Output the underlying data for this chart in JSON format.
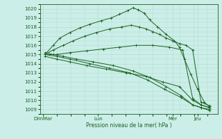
{
  "xlabel": "Pression niveau de la mer( hPa )",
  "ylim": [
    1008.5,
    1020.5
  ],
  "yticks": [
    1009,
    1010,
    1011,
    1012,
    1013,
    1014,
    1015,
    1016,
    1017,
    1018,
    1019,
    1020
  ],
  "xtick_labels": [
    "DimMar",
    "Lun",
    "Mer",
    "Jeu"
  ],
  "xtick_positions": [
    0.0,
    0.33,
    0.78,
    0.93
  ],
  "bg_color": "#cceee8",
  "grid_color": "#aaddcc",
  "line_color": "#1a6020",
  "line_width": 0.7,
  "lines": [
    {
      "x": [
        0.01,
        0.06,
        0.1,
        0.16,
        0.22,
        0.28,
        0.35,
        0.41,
        0.46,
        0.51,
        0.54,
        0.57,
        0.61,
        0.64,
        0.69,
        0.74,
        0.79,
        0.82,
        0.85,
        0.89,
        0.93,
        0.97,
        1.0
      ],
      "y": [
        1015.0,
        1016.0,
        1016.8,
        1017.4,
        1017.9,
        1018.3,
        1018.7,
        1019.0,
        1019.4,
        1019.8,
        1020.1,
        1019.9,
        1019.5,
        1018.8,
        1018.0,
        1017.2,
        1016.5,
        1015.8,
        1014.5,
        1012.8,
        1011.2,
        1009.8,
        1009.3
      ]
    },
    {
      "x": [
        0.01,
        0.06,
        0.12,
        0.18,
        0.25,
        0.32,
        0.4,
        0.47,
        0.53,
        0.58,
        0.62,
        0.66,
        0.7,
        0.74,
        0.78,
        0.82,
        0.86,
        0.9,
        0.95,
        1.0
      ],
      "y": [
        1015.0,
        1015.5,
        1016.0,
        1016.5,
        1017.0,
        1017.4,
        1017.8,
        1018.0,
        1018.2,
        1018.0,
        1017.8,
        1017.5,
        1017.2,
        1016.8,
        1016.5,
        1016.2,
        1016.0,
        1015.5,
        1009.8,
        1009.4
      ]
    },
    {
      "x": [
        0.01,
        0.08,
        0.16,
        0.26,
        0.36,
        0.46,
        0.56,
        0.66,
        0.76,
        0.84,
        0.9,
        0.95,
        1.0
      ],
      "y": [
        1015.0,
        1015.0,
        1015.2,
        1015.4,
        1015.6,
        1015.8,
        1016.0,
        1016.0,
        1015.8,
        1015.5,
        1010.2,
        1009.5,
        1009.2
      ]
    },
    {
      "x": [
        0.01,
        0.08,
        0.16,
        0.26,
        0.38,
        0.5,
        0.62,
        0.72,
        0.82,
        0.9,
        0.95,
        1.0
      ],
      "y": [
        1014.8,
        1014.5,
        1014.2,
        1013.8,
        1013.4,
        1013.0,
        1012.6,
        1012.0,
        1011.5,
        1010.0,
        1009.5,
        1009.2
      ]
    },
    {
      "x": [
        0.01,
        0.08,
        0.16,
        0.28,
        0.4,
        0.52,
        0.63,
        0.73,
        0.83,
        0.9,
        0.95,
        1.0
      ],
      "y": [
        1015.0,
        1014.8,
        1014.5,
        1014.0,
        1013.5,
        1013.0,
        1012.2,
        1011.2,
        1010.3,
        1009.5,
        1009.2,
        1009.0
      ]
    },
    {
      "x": [
        0.01,
        0.06,
        0.12,
        0.2,
        0.3,
        0.42,
        0.54,
        0.64,
        0.74,
        0.83,
        0.9,
        0.95,
        1.0
      ],
      "y": [
        1015.2,
        1015.0,
        1014.8,
        1014.5,
        1014.2,
        1013.8,
        1013.2,
        1012.5,
        1011.5,
        1010.5,
        1009.5,
        1009.2,
        1008.9
      ]
    }
  ]
}
